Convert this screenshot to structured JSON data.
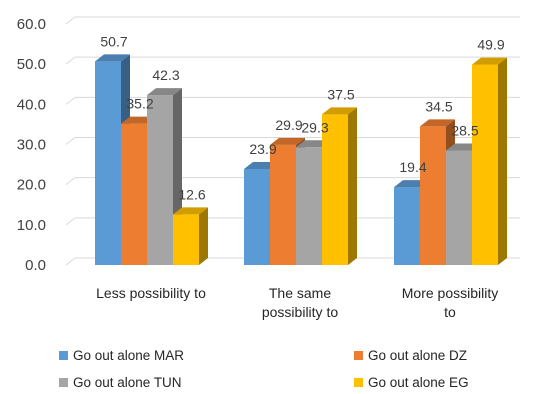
{
  "chart_data": {
    "type": "bar",
    "style": "3d-clustered-column",
    "categories": [
      [
        "Less possibility to"
      ],
      [
        "The same",
        "possibility to"
      ],
      [
        "More possibility",
        "to"
      ]
    ],
    "series": [
      {
        "name": "Go out alone MAR",
        "color": "#5b9bd5",
        "values": [
          50.7,
          23.9,
          19.4
        ]
      },
      {
        "name": "Go out alone DZ",
        "color": "#ed7d31",
        "values": [
          35.2,
          29.9,
          34.5
        ]
      },
      {
        "name": "Go out alone TUN",
        "color": "#a5a5a5",
        "values": [
          42.3,
          29.3,
          28.5
        ]
      },
      {
        "name": "Go out alone EG",
        "color": "#ffc000",
        "values": [
          12.6,
          37.5,
          49.9
        ]
      }
    ],
    "ylim": [
      0,
      60
    ],
    "yticks": [
      "0.0",
      "10.0",
      "20.0",
      "30.0",
      "40.0",
      "50.0",
      "60.0"
    ],
    "title": "",
    "xlabel": "",
    "ylabel": "",
    "grid": true,
    "legend_position": "bottom"
  }
}
